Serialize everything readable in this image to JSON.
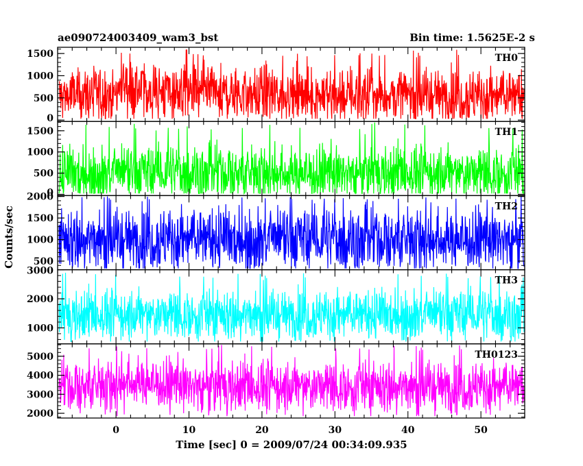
{
  "header": {
    "title": "ae090724003409_wam3_bst",
    "bin_time": "Bin time: 1.5625E-2 s"
  },
  "chart_data": {
    "type": "line",
    "title": "ae090724003409_wam3_bst",
    "xlabel": "Time [sec] 0 = 2009/07/24 00:34:09.935",
    "ylabel": "Counts/sec",
    "xlim": [
      -8,
      56
    ],
    "x_ticks": [
      0,
      10,
      20,
      30,
      40,
      50
    ],
    "x_tick_labels": [
      "0",
      "10",
      "20",
      "30",
      "40",
      "50"
    ],
    "bin_time_s": 0.015625,
    "panels": [
      {
        "name": "TH0",
        "color": "#ff0000",
        "ylim": [
          -30,
          1640
        ],
        "y_ticks": [
          0,
          500,
          1000,
          1500
        ],
        "y_tick_labels": [
          "0",
          "500",
          "1000",
          "1500"
        ],
        "mean": 520,
        "typical_max": 1200,
        "peak": 1600,
        "min": 30,
        "series_points": [
          [
            -8,
            550
          ],
          [
            0,
            600
          ],
          [
            1,
            900
          ],
          [
            2,
            700
          ],
          [
            10,
            600
          ],
          [
            20,
            580
          ],
          [
            30,
            560
          ],
          [
            40,
            560
          ],
          [
            50,
            540
          ],
          [
            56,
            540
          ]
        ]
      },
      {
        "name": "TH1",
        "color": "#00ff00",
        "ylim": [
          -30,
          1720
        ],
        "y_ticks": [
          0,
          500,
          1000,
          1500
        ],
        "y_tick_labels": [
          "0",
          "500",
          "1000",
          "1500"
        ],
        "mean": 500,
        "typical_max": 1200,
        "peak": 1700,
        "min": 20,
        "series_points": [
          [
            -8,
            480
          ],
          [
            0,
            500
          ],
          [
            10,
            520
          ],
          [
            20,
            500
          ],
          [
            30,
            500
          ],
          [
            40,
            510
          ],
          [
            50,
            500
          ],
          [
            56,
            500
          ]
        ]
      },
      {
        "name": "TH2",
        "color": "#0000ff",
        "ylim": [
          300,
          2020
        ],
        "y_ticks": [
          500,
          1000,
          1500,
          2000
        ],
        "y_tick_labels": [
          "500",
          "1000",
          "1500",
          "2000"
        ],
        "mean": 1000,
        "typical_max": 1800,
        "peak": 2000,
        "min": 330,
        "series_points": [
          [
            -8,
            1000
          ],
          [
            0,
            1000
          ],
          [
            10,
            1020
          ],
          [
            20,
            1000
          ],
          [
            30,
            1000
          ],
          [
            40,
            1000
          ],
          [
            50,
            1000
          ],
          [
            56,
            1000
          ]
        ]
      },
      {
        "name": "TH3",
        "color": "#00ffff",
        "ylim": [
          450,
          3000
        ],
        "y_ticks": [
          1000,
          2000,
          3000
        ],
        "y_tick_labels": [
          "1000",
          "2000",
          "3000"
        ],
        "mean": 1450,
        "typical_max": 2400,
        "peak": 2900,
        "min": 530,
        "series_points": [
          [
            -8,
            1400
          ],
          [
            0,
            1450
          ],
          [
            10,
            1450
          ],
          [
            20,
            1450
          ],
          [
            30,
            1450
          ],
          [
            40,
            1450
          ],
          [
            50,
            1450
          ],
          [
            56,
            1450
          ]
        ]
      },
      {
        "name": "TH0123",
        "color": "#ff00ff",
        "ylim": [
          1750,
          5650
        ],
        "y_ticks": [
          2000,
          3000,
          4000,
          5000
        ],
        "y_tick_labels": [
          "2000",
          "3000",
          "4000",
          "5000"
        ],
        "mean": 3400,
        "typical_max": 4900,
        "peak": 5600,
        "min": 1850,
        "series_points": [
          [
            -8,
            3400
          ],
          [
            0,
            3450
          ],
          [
            1,
            3700
          ],
          [
            10,
            3450
          ],
          [
            20,
            3400
          ],
          [
            30,
            3400
          ],
          [
            40,
            3400
          ],
          [
            50,
            3400
          ],
          [
            56,
            3400
          ]
        ]
      }
    ]
  }
}
